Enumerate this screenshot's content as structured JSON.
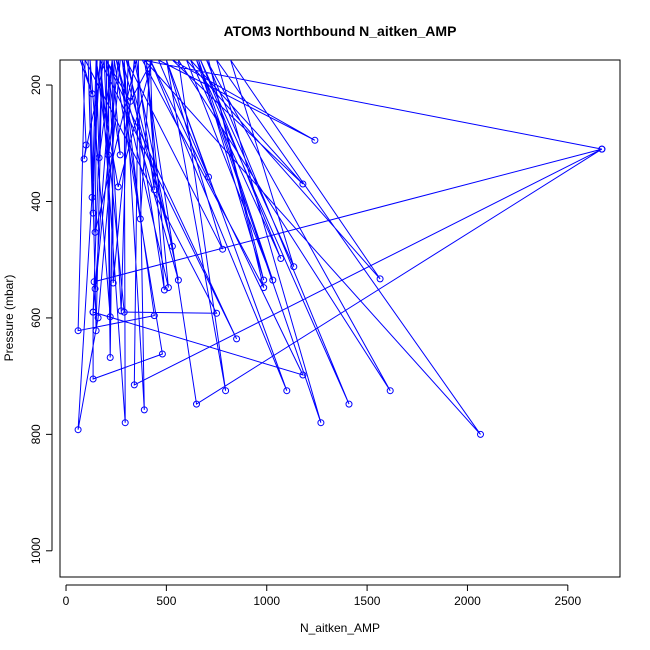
{
  "chart_data": {
    "type": "line",
    "title": "ATOM3 Northbound N_aitken_AMP",
    "xlabel": "N_aitken_AMP",
    "ylabel": "Pressure (mbar)",
    "xlim": [
      -30,
      2760
    ],
    "ylim": [
      1045,
      157
    ],
    "y_inverted": true,
    "x_ticks": [
      0,
      500,
      1000,
      1500,
      2000,
      2500
    ],
    "y_ticks": [
      200,
      400,
      600,
      800,
      1000
    ],
    "grid": false,
    "color": "#0000ff",
    "series": [
      {
        "values": [
          [
            70,
            157
          ],
          [
            130,
            215
          ],
          [
            80,
            157
          ],
          [
            100,
            303
          ],
          [
            90,
            327
          ],
          [
            190,
            157
          ],
          [
            210,
            320
          ],
          [
            150,
            157
          ],
          [
            165,
            325
          ],
          [
            230,
            157
          ],
          [
            270,
            320
          ],
          [
            200,
            157
          ],
          [
            320,
            228
          ],
          [
            430,
            157
          ],
          [
            260,
            375
          ],
          [
            150,
            157
          ],
          [
            130,
            393
          ],
          [
            110,
            157
          ],
          [
            135,
            420
          ],
          [
            155,
            157
          ],
          [
            145,
            453
          ],
          [
            350,
            157
          ],
          [
            440,
            380
          ],
          [
            420,
            157
          ],
          [
            370,
            430
          ],
          [
            280,
            157
          ],
          [
            530,
            477
          ],
          [
            300,
            157
          ],
          [
            780,
            482
          ],
          [
            500,
            157
          ],
          [
            710,
            358
          ],
          [
            460,
            157
          ],
          [
            1240,
            295
          ],
          [
            530,
            157
          ],
          [
            1180,
            370
          ],
          [
            620,
            157
          ],
          [
            1070,
            498
          ],
          [
            670,
            157
          ],
          [
            1135,
            512
          ],
          [
            820,
            157
          ],
          [
            1565,
            533
          ],
          [
            600,
            157
          ],
          [
            1030,
            535
          ],
          [
            660,
            157
          ],
          [
            985,
            535
          ],
          [
            710,
            157
          ],
          [
            985,
            548
          ],
          [
            380,
            157
          ],
          [
            2670,
            310
          ],
          [
            140,
            538
          ],
          [
            145,
            550
          ],
          [
            230,
            157
          ],
          [
            235,
            540
          ],
          [
            340,
            157
          ],
          [
            560,
            535
          ],
          [
            250,
            157
          ],
          [
            510,
            548
          ],
          [
            400,
            157
          ],
          [
            490,
            552
          ],
          [
            310,
            157
          ],
          [
            275,
            588
          ],
          [
            210,
            157
          ],
          [
            220,
            598
          ],
          [
            120,
            157
          ],
          [
            150,
            622
          ],
          [
            180,
            157
          ],
          [
            135,
            590
          ],
          [
            260,
            157
          ],
          [
            440,
            596
          ],
          [
            60,
            622
          ],
          [
            95,
            157
          ],
          [
            750,
            592
          ],
          [
            290,
            590
          ],
          [
            170,
            157
          ],
          [
            850,
            636
          ],
          [
            200,
            157
          ],
          [
            220,
            668
          ],
          [
            240,
            157
          ],
          [
            480,
            662
          ],
          [
            135,
            705
          ],
          [
            135,
            590
          ],
          [
            1180,
            698
          ],
          [
            420,
            157
          ],
          [
            1100,
            725
          ],
          [
            500,
            157
          ],
          [
            795,
            725
          ],
          [
            560,
            157
          ],
          [
            1615,
            725
          ],
          [
            700,
            157
          ],
          [
            1410,
            748
          ],
          [
            650,
            157
          ],
          [
            1270,
            780
          ],
          [
            750,
            157
          ],
          [
            2065,
            800
          ],
          [
            390,
            157
          ],
          [
            650,
            748
          ],
          [
            2670,
            310
          ],
          [
            340,
            715
          ],
          [
            360,
            157
          ],
          [
            390,
            758
          ],
          [
            290,
            157
          ],
          [
            295,
            780
          ],
          [
            170,
            157
          ],
          [
            60,
            792
          ],
          [
            160,
            600
          ],
          [
            270,
            157
          ]
        ]
      }
    ]
  }
}
